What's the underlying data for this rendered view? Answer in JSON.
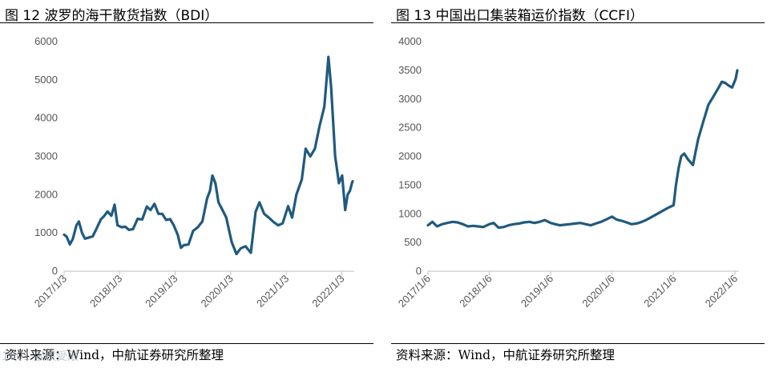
{
  "watermark": "1001 版权受限",
  "chart_data": [
    {
      "type": "line",
      "title": "图 12 波罗的海干散货指数（BDI）",
      "source": "资料来源：Wind，中航证券研究所整理",
      "color": "#1f5a7f",
      "legend": "none",
      "grid": false,
      "ylim": [
        0,
        6000
      ],
      "yticks": [
        "0",
        "1000",
        "2000",
        "3000",
        "4000",
        "5000",
        "6000"
      ],
      "ytick_values": [
        0,
        1000,
        2000,
        3000,
        4000,
        5000,
        6000
      ],
      "xlim": [
        "2017-01-03",
        "2022-03-15"
      ],
      "xticks": [
        "2017/1/3",
        "2018/1/3",
        "2019/1/3",
        "2020/1/3",
        "2021/1/3",
        "2022/1/3"
      ],
      "xtick_values": [
        "2017-01-03",
        "2018-01-03",
        "2019-01-03",
        "2020-01-03",
        "2021-01-03",
        "2022-01-03"
      ],
      "series": [
        {
          "x": [
            "2017-01-03",
            "2017-01-20",
            "2017-02-10",
            "2017-03-01",
            "2017-03-25",
            "2017-04-10",
            "2017-05-01",
            "2017-05-20",
            "2017-06-15",
            "2017-07-10",
            "2017-08-05",
            "2017-09-01",
            "2017-09-25",
            "2017-10-15",
            "2017-11-10",
            "2017-12-01",
            "2017-12-20",
            "2018-01-15",
            "2018-02-10",
            "2018-03-05",
            "2018-04-01",
            "2018-05-01",
            "2018-06-01",
            "2018-07-01",
            "2018-07-25",
            "2018-08-20",
            "2018-09-15",
            "2018-10-10",
            "2018-11-05",
            "2018-12-01",
            "2018-12-25",
            "2019-01-20",
            "2019-02-10",
            "2019-03-01",
            "2019-04-01",
            "2019-05-01",
            "2019-06-01",
            "2019-07-01",
            "2019-08-01",
            "2019-08-20",
            "2019-09-05",
            "2019-09-25",
            "2019-10-15",
            "2019-11-10",
            "2019-12-05",
            "2020-01-10",
            "2020-02-10",
            "2020-03-10",
            "2020-04-10",
            "2020-05-15",
            "2020-06-15",
            "2020-07-10",
            "2020-08-10",
            "2020-09-10",
            "2020-10-10",
            "2020-11-10",
            "2020-12-10",
            "2021-01-15",
            "2021-02-10",
            "2021-03-10",
            "2021-04-15",
            "2021-05-10",
            "2021-06-10",
            "2021-07-10",
            "2021-08-10",
            "2021-09-10",
            "2021-10-07",
            "2021-10-25",
            "2021-11-20",
            "2021-12-15",
            "2022-01-05",
            "2022-01-25",
            "2022-02-10",
            "2022-02-25",
            "2022-03-10",
            "2022-03-15"
          ],
          "y": [
            953,
            900,
            700,
            840,
            1200,
            1300,
            1000,
            850,
            880,
            910,
            1120,
            1350,
            1450,
            1560,
            1450,
            1740,
            1200,
            1150,
            1160,
            1080,
            1100,
            1370,
            1350,
            1690,
            1600,
            1760,
            1500,
            1500,
            1340,
            1360,
            1200,
            950,
            610,
            680,
            700,
            1050,
            1150,
            1300,
            1900,
            2100,
            2500,
            2300,
            1800,
            1600,
            1400,
            760,
            450,
            600,
            650,
            480,
            1550,
            1800,
            1500,
            1400,
            1290,
            1200,
            1250,
            1700,
            1400,
            2000,
            2400,
            3200,
            3000,
            3200,
            3800,
            4300,
            5600,
            4800,
            3000,
            2300,
            2500,
            1600,
            2000,
            2100,
            2300,
            2350
          ]
        }
      ]
    },
    {
      "type": "line",
      "title": "图 13 中国出口集装箱运价指数（CCFI）",
      "source": "资料来源：Wind，中航证券研究所整理",
      "color": "#1f5a7f",
      "legend": "none",
      "grid": false,
      "ylim": [
        0,
        4000
      ],
      "yticks": [
        "0",
        "500",
        "1000",
        "1500",
        "2000",
        "2500",
        "3000",
        "3500",
        "4000"
      ],
      "ytick_values": [
        0,
        500,
        1000,
        1500,
        2000,
        2500,
        3000,
        3500,
        4000
      ],
      "xlim": [
        "2017-01-06",
        "2022-01-20"
      ],
      "xticks": [
        "2017/1/6",
        "2018/1/6",
        "2019/1/6",
        "2020/1/6",
        "2021/1/6",
        "2022/1/6"
      ],
      "xtick_values": [
        "2017-01-06",
        "2018-01-06",
        "2019-01-06",
        "2020-01-06",
        "2021-01-06",
        "2022-01-06"
      ],
      "series": [
        {
          "x": [
            "2017-01-06",
            "2017-02-01",
            "2017-03-01",
            "2017-04-01",
            "2017-05-01",
            "2017-06-01",
            "2017-07-01",
            "2017-08-01",
            "2017-09-01",
            "2017-10-01",
            "2017-11-01",
            "2017-12-01",
            "2018-01-06",
            "2018-02-01",
            "2018-03-01",
            "2018-04-01",
            "2018-05-01",
            "2018-06-01",
            "2018-07-01",
            "2018-08-01",
            "2018-09-01",
            "2018-10-01",
            "2018-11-01",
            "2018-12-01",
            "2019-01-06",
            "2019-02-01",
            "2019-03-01",
            "2019-04-01",
            "2019-05-01",
            "2019-06-01",
            "2019-07-01",
            "2019-08-01",
            "2019-09-01",
            "2019-10-01",
            "2019-11-01",
            "2019-12-01",
            "2020-01-06",
            "2020-02-01",
            "2020-03-01",
            "2020-04-01",
            "2020-05-01",
            "2020-06-01",
            "2020-07-01",
            "2020-08-01",
            "2020-09-01",
            "2020-10-01",
            "2020-11-01",
            "2020-12-01",
            "2021-01-06",
            "2021-01-20",
            "2021-02-05",
            "2021-02-20",
            "2021-03-10",
            "2021-04-01",
            "2021-05-01",
            "2021-06-01",
            "2021-07-01",
            "2021-08-01",
            "2021-09-01",
            "2021-10-01",
            "2021-10-20",
            "2021-11-10",
            "2021-12-01",
            "2021-12-20",
            "2022-01-10",
            "2022-01-20"
          ],
          "y": [
            800,
            860,
            780,
            820,
            840,
            860,
            850,
            820,
            780,
            790,
            780,
            770,
            820,
            840,
            760,
            770,
            800,
            820,
            830,
            850,
            860,
            840,
            860,
            890,
            840,
            820,
            800,
            810,
            820,
            830,
            840,
            820,
            800,
            830,
            860,
            900,
            950,
            900,
            880,
            850,
            820,
            830,
            860,
            900,
            950,
            1000,
            1050,
            1100,
            1150,
            1500,
            1800,
            2000,
            2050,
            1950,
            1850,
            2300,
            2600,
            2900,
            3050,
            3200,
            3300,
            3280,
            3230,
            3200,
            3350,
            3500
          ]
        }
      ]
    }
  ]
}
